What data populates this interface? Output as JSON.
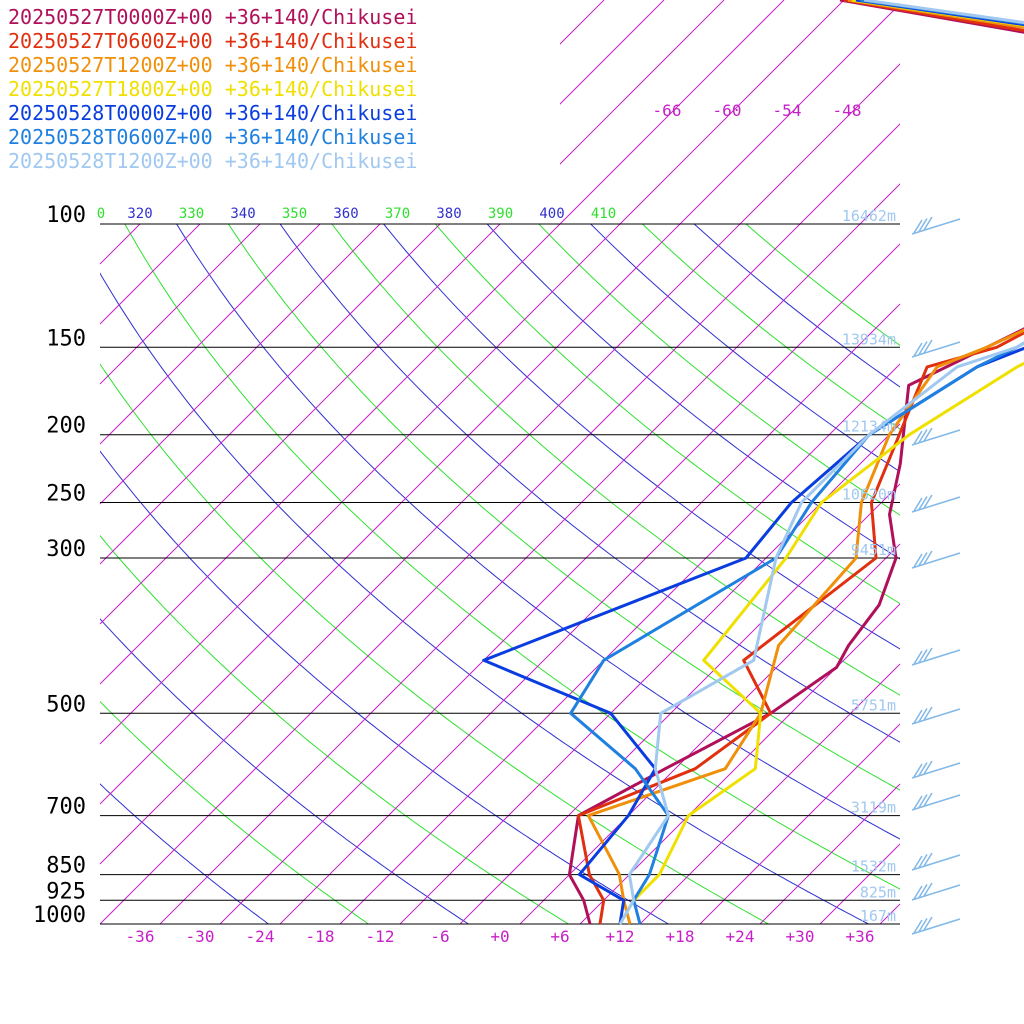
{
  "chart_data": {
    "type": "line",
    "title": "",
    "xlabel": "",
    "ylabel": "",
    "x_unit": "temperature (deg C, skewed)",
    "y_unit": "pressure (hPa, log)",
    "xlim": [
      -40,
      40
    ],
    "ylim": [
      1000,
      100
    ],
    "temperature_ticks": [
      "-36",
      "-30",
      "-24",
      "-18",
      "-12",
      "-6",
      "+0",
      "+6",
      "+12",
      "+18",
      "+24",
      "+30",
      "+36"
    ],
    "upper_temperature_ticks": [
      "-66",
      "-60",
      "-54",
      "-48"
    ],
    "pressure_levels": [
      {
        "label": "100",
        "p": 100,
        "height": "16462m"
      },
      {
        "label": "150",
        "p": 150,
        "height": "13934m"
      },
      {
        "label": "200",
        "p": 200,
        "height": "12134m"
      },
      {
        "label": "250",
        "p": 250,
        "height": "10620m"
      },
      {
        "label": "300",
        "p": 300,
        "height": "9451m"
      },
      {
        "label": "500",
        "p": 500,
        "height": "5751m"
      },
      {
        "label": "700",
        "p": 700,
        "height": "3119m"
      },
      {
        "label": "850",
        "p": 850,
        "height": "1532m"
      },
      {
        "label": "925",
        "p": 925,
        "height": "825m"
      },
      {
        "label": "1000",
        "p": 1000,
        "height": "167m"
      }
    ],
    "theta_labels": [
      "0",
      "320",
      "330",
      "340",
      "350",
      "360",
      "370",
      "380",
      "390",
      "400",
      "410"
    ],
    "series": [
      {
        "name": "20250527T0000Z+00 +36+140/Chikusei",
        "color": "#b0105a",
        "points": [
          [
            1000,
            9
          ],
          [
            925,
            6
          ],
          [
            850,
            2
          ],
          [
            700,
            -3
          ],
          [
            600,
            1
          ],
          [
            500,
            6
          ],
          [
            430,
            8
          ],
          [
            400,
            7
          ],
          [
            350,
            6
          ],
          [
            300,
            3
          ],
          [
            260,
            -2
          ],
          [
            220,
            -6
          ],
          [
            170,
            -13
          ],
          [
            150,
            -9
          ],
          [
            120,
            -2
          ],
          [
            100,
            -3
          ]
        ]
      },
      {
        "name": "20250527T0600Z+00 +36+140/Chikusei",
        "color": "#e03010",
        "points": [
          [
            1000,
            10
          ],
          [
            925,
            8
          ],
          [
            850,
            4
          ],
          [
            700,
            -3
          ],
          [
            600,
            4
          ],
          [
            500,
            6
          ],
          [
            420,
            -2
          ],
          [
            300,
            1
          ],
          [
            250,
            -5
          ],
          [
            200,
            -9
          ],
          [
            160,
            -13
          ],
          [
            150,
            -8
          ],
          [
            120,
            -2
          ],
          [
            100,
            -3
          ]
        ]
      },
      {
        "name": "20250527T1200Z+00 +36+140/Chikusei",
        "color": "#f0900a",
        "points": [
          [
            1000,
            13
          ],
          [
            925,
            10
          ],
          [
            850,
            7
          ],
          [
            700,
            -2
          ],
          [
            600,
            7
          ],
          [
            500,
            5
          ],
          [
            400,
            0
          ],
          [
            300,
            -1
          ],
          [
            250,
            -6
          ],
          [
            200,
            -10
          ],
          [
            160,
            -12
          ],
          [
            150,
            -9
          ],
          [
            120,
            -1
          ],
          [
            100,
            0
          ]
        ]
      },
      {
        "name": "20250527T1800Z+00 +36+140/Chikusei",
        "color": "#f0e000",
        "points": [
          [
            1000,
            12
          ],
          [
            925,
            11
          ],
          [
            850,
            11
          ],
          [
            700,
            8
          ],
          [
            600,
            10
          ],
          [
            500,
            5
          ],
          [
            420,
            -6
          ],
          [
            300,
            -8
          ],
          [
            250,
            -10
          ],
          [
            200,
            -8
          ],
          [
            160,
            -4
          ],
          [
            150,
            -2
          ],
          [
            120,
            0
          ],
          [
            100,
            1
          ]
        ]
      },
      {
        "name": "20250528T0000Z+00 +36+140/Chikusei",
        "color": "#0a3de0",
        "points": [
          [
            1000,
            12
          ],
          [
            925,
            10
          ],
          [
            850,
            3
          ],
          [
            700,
            2
          ],
          [
            600,
            0
          ],
          [
            500,
            -10
          ],
          [
            420,
            -28
          ],
          [
            300,
            -12
          ],
          [
            250,
            -13
          ],
          [
            200,
            -12
          ],
          [
            160,
            -8
          ],
          [
            150,
            -5
          ],
          [
            120,
            0
          ],
          [
            100,
            0
          ]
        ]
      },
      {
        "name": "20250528T0600Z+00 +36+140/Chikusei",
        "color": "#2080e0",
        "points": [
          [
            1000,
            14
          ],
          [
            925,
            11
          ],
          [
            850,
            10
          ],
          [
            700,
            6
          ],
          [
            600,
            -2
          ],
          [
            500,
            -14
          ],
          [
            420,
            -16
          ],
          [
            300,
            -9
          ],
          [
            250,
            -11
          ],
          [
            200,
            -12
          ],
          [
            160,
            -8
          ],
          [
            150,
            -6
          ],
          [
            120,
            -1
          ],
          [
            100,
            0
          ]
        ]
      },
      {
        "name": "20250528T1200Z+00 +36+140/Chikusei",
        "color": "#a0c8f0",
        "points": [
          [
            1000,
            12
          ],
          [
            925,
            11
          ],
          [
            850,
            8
          ],
          [
            700,
            6
          ],
          [
            600,
            0
          ],
          [
            500,
            -5
          ],
          [
            420,
            -1
          ],
          [
            300,
            -9
          ],
          [
            250,
            -12
          ],
          [
            200,
            -12
          ],
          [
            160,
            -10
          ],
          [
            150,
            -6
          ],
          [
            120,
            -1
          ],
          [
            100,
            -1
          ]
        ]
      }
    ],
    "wind_barbs": {
      "color": "#80b8e8"
    }
  }
}
